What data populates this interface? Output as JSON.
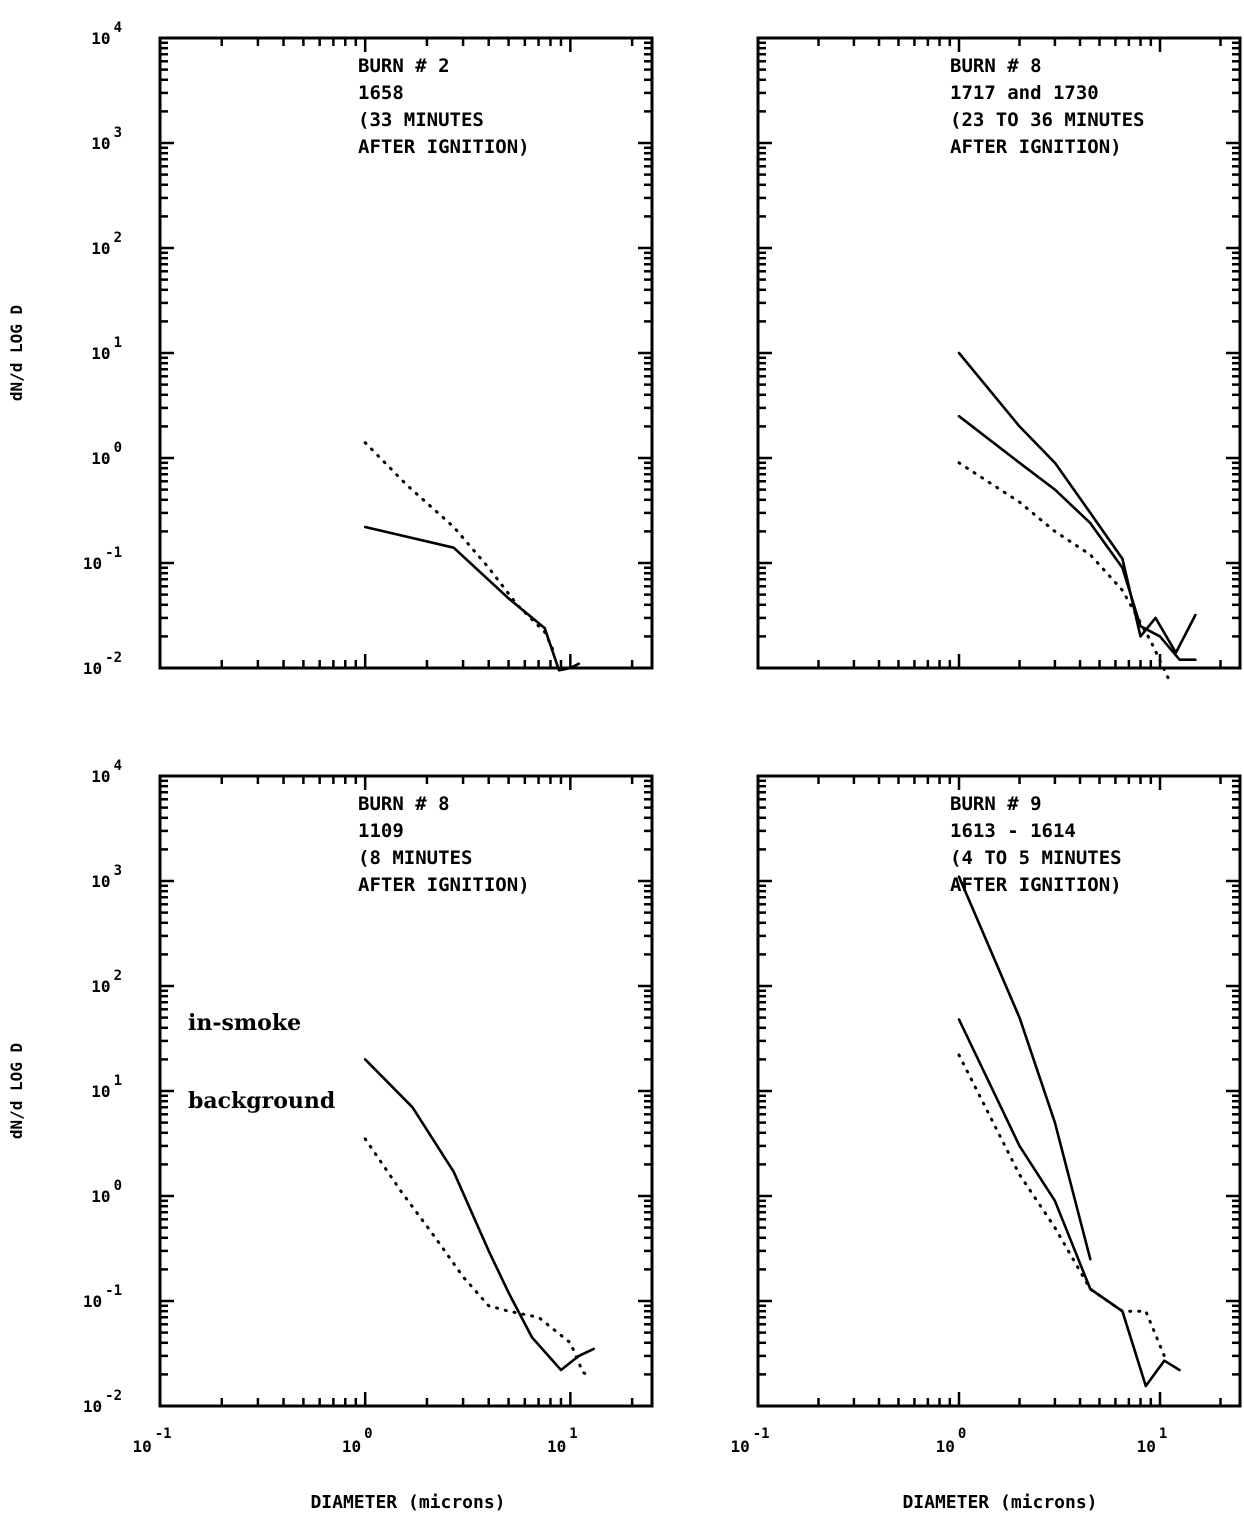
{
  "chart_data": [
    {
      "type": "line",
      "annotation": [
        "BURN # 2",
        "1658",
        "(33 MINUTES",
        "AFTER IGNITION)"
      ],
      "ylabel": "dN/d LOG D",
      "xlabel": "",
      "xscale": "log",
      "yscale": "log",
      "xlim": [
        0.1,
        25
      ],
      "ylim": [
        0.01,
        10000
      ],
      "x_ticks": [
        {
          "base": "10",
          "exp": "-1"
        },
        {
          "base": "10",
          "exp": "0"
        },
        {
          "base": "10",
          "exp": "1"
        }
      ],
      "y_ticks": [
        {
          "base": "10",
          "exp": "-2"
        },
        {
          "base": "10",
          "exp": "-1"
        },
        {
          "base": "10",
          "exp": "0"
        },
        {
          "base": "10",
          "exp": "1"
        },
        {
          "base": "10",
          "exp": "2"
        },
        {
          "base": "10",
          "exp": "3"
        },
        {
          "base": "10",
          "exp": "4"
        }
      ],
      "series": [
        {
          "style": "solid",
          "x": [
            1.0,
            2.7,
            5.0,
            7.5,
            8.8,
            10.0,
            11.0
          ],
          "y": [
            0.22,
            0.14,
            0.046,
            0.024,
            0.0095,
            0.01,
            0.011
          ]
        },
        {
          "style": "dotted",
          "x": [
            1.0,
            1.6,
            2.7,
            4.0,
            5.5,
            7.5,
            8.5
          ],
          "y": [
            1.4,
            0.55,
            0.22,
            0.09,
            0.04,
            0.022,
            0.013
          ]
        }
      ]
    },
    {
      "type": "line",
      "annotation": [
        "BURN # 8",
        "1717 and 1730",
        "(23 TO 36 MINUTES",
        "AFTER IGNITION)"
      ],
      "ylabel": "",
      "xlabel": "DIAMETER (microns)",
      "xscale": "log",
      "yscale": "log",
      "xlim": [
        0.1,
        25
      ],
      "ylim": [
        0.01,
        10000
      ],
      "x_ticks": [
        {
          "base": "10",
          "exp": "-1"
        },
        {
          "base": "10",
          "exp": "0"
        },
        {
          "base": "10",
          "exp": "1"
        }
      ],
      "y_ticks": [],
      "series": [
        {
          "style": "solid",
          "x": [
            1.0,
            2.0,
            3.0,
            4.5,
            6.5,
            8.0,
            9.5,
            12.0,
            15.0
          ],
          "y": [
            10.0,
            2.0,
            0.9,
            0.3,
            0.11,
            0.02,
            0.03,
            0.014,
            0.032
          ]
        },
        {
          "style": "solid",
          "x": [
            1.0,
            2.0,
            3.0,
            4.5,
            6.5,
            8.0,
            10.0,
            12.5,
            15.0
          ],
          "y": [
            2.5,
            0.9,
            0.5,
            0.24,
            0.09,
            0.025,
            0.02,
            0.012,
            0.012
          ]
        },
        {
          "style": "dotted",
          "x": [
            1.0,
            2.0,
            3.0,
            4.5,
            6.5,
            9.0,
            11.0
          ],
          "y": [
            0.9,
            0.38,
            0.2,
            0.12,
            0.055,
            0.018,
            0.008
          ]
        }
      ]
    },
    {
      "type": "line",
      "annotation": [
        "BURN # 8",
        "1109",
        "(8 MINUTES",
        "AFTER IGNITION)"
      ],
      "ylabel": "dN/d LOG D",
      "xlabel": "",
      "xscale": "log",
      "yscale": "log",
      "xlim": [
        0.1,
        25
      ],
      "ylim": [
        0.01,
        10000
      ],
      "x_ticks": [
        {
          "base": "10",
          "exp": "-1"
        },
        {
          "base": "10",
          "exp": "0"
        },
        {
          "base": "10",
          "exp": "1"
        }
      ],
      "y_ticks": [
        {
          "base": "10",
          "exp": "-2"
        },
        {
          "base": "10",
          "exp": "-1"
        },
        {
          "base": "10",
          "exp": "0"
        },
        {
          "base": "10",
          "exp": "1"
        },
        {
          "base": "10",
          "exp": "2"
        },
        {
          "base": "10",
          "exp": "3"
        },
        {
          "base": "10",
          "exp": "4"
        }
      ],
      "legend_labels": [
        "in-smoke",
        "background"
      ],
      "series": [
        {
          "style": "solid",
          "x": [
            1.0,
            1.7,
            2.7,
            4.0,
            5.0,
            6.5,
            9.0,
            11.0,
            13.0
          ],
          "y": [
            20.0,
            7.0,
            1.7,
            0.3,
            0.12,
            0.045,
            0.022,
            0.03,
            0.035
          ]
        },
        {
          "style": "dotted",
          "x": [
            1.0,
            1.5,
            2.2,
            3.0,
            4.0,
            5.0,
            7.0,
            10.0,
            11.5,
            12.5
          ],
          "y": [
            3.5,
            1.1,
            0.4,
            0.17,
            0.09,
            0.08,
            0.07,
            0.04,
            0.021,
            0.019
          ]
        }
      ]
    },
    {
      "type": "line",
      "annotation": [
        "BURN # 9",
        "1613 - 1614",
        "(4 TO 5 MINUTES",
        "AFTER IGNITION)"
      ],
      "ylabel": "",
      "xlabel": "DIAMETER (microns)",
      "xscale": "log",
      "yscale": "log",
      "xlim": [
        0.1,
        25
      ],
      "ylim": [
        0.01,
        10000
      ],
      "x_ticks": [
        {
          "base": "10",
          "exp": "-1"
        },
        {
          "base": "10",
          "exp": "0"
        },
        {
          "base": "10",
          "exp": "1"
        }
      ],
      "y_ticks": [],
      "series": [
        {
          "style": "solid",
          "x": [
            1.0,
            2.0,
            3.0,
            4.5
          ],
          "y": [
            1100.0,
            50.0,
            5.0,
            0.25
          ]
        },
        {
          "style": "solid",
          "x": [
            1.0,
            2.0,
            3.0,
            4.5,
            6.5,
            8.5,
            10.5,
            12.5
          ],
          "y": [
            48.0,
            3.0,
            0.9,
            0.13,
            0.08,
            0.0155,
            0.027,
            0.022
          ]
        },
        {
          "style": "dotted",
          "x": [
            1.0,
            2.0,
            3.0,
            4.5,
            6.5,
            8.5,
            10.5
          ],
          "y": [
            22.0,
            1.6,
            0.5,
            0.13,
            0.08,
            0.08,
            0.03
          ]
        }
      ]
    }
  ]
}
